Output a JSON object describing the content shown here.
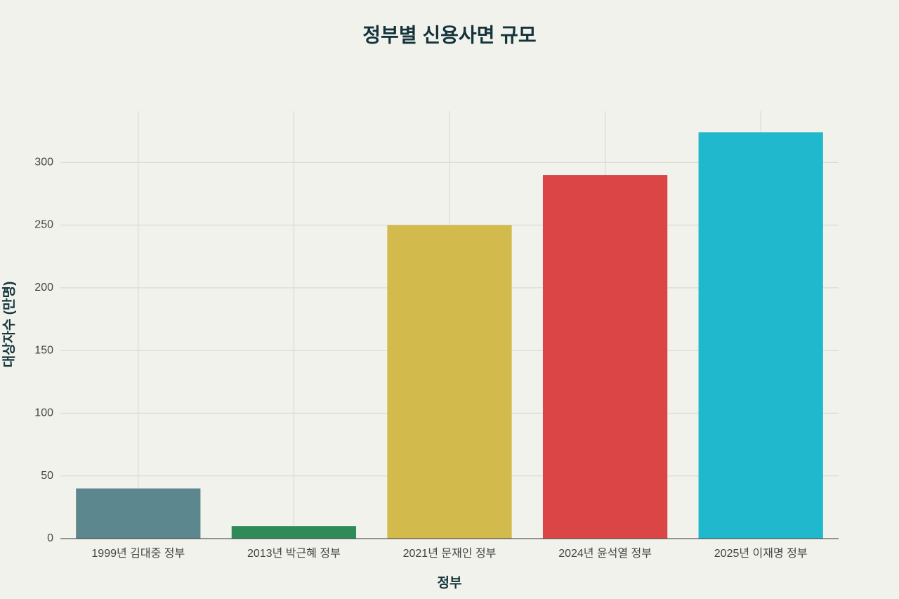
{
  "chart_data": {
    "type": "bar",
    "title": "정부별 신용사면 규모",
    "x_label": "정부",
    "y_label": "대상자수 (만명)",
    "categories": [
      "1999년 김대중 정부",
      "2013년 박근혜 정부",
      "2021년 문재인 정부",
      "2024년 윤석열 정부",
      "2025년 이재명 정부"
    ],
    "values": [
      40,
      10,
      250,
      290,
      324
    ],
    "colors": [
      "#5d878f",
      "#2e8b57",
      "#d2ba4c",
      "#db4545",
      "#1fb8cd"
    ],
    "ylim": [
      0,
      341
    ],
    "yticks": [
      0,
      50,
      100,
      150,
      200,
      250,
      300
    ],
    "grid": true
  }
}
